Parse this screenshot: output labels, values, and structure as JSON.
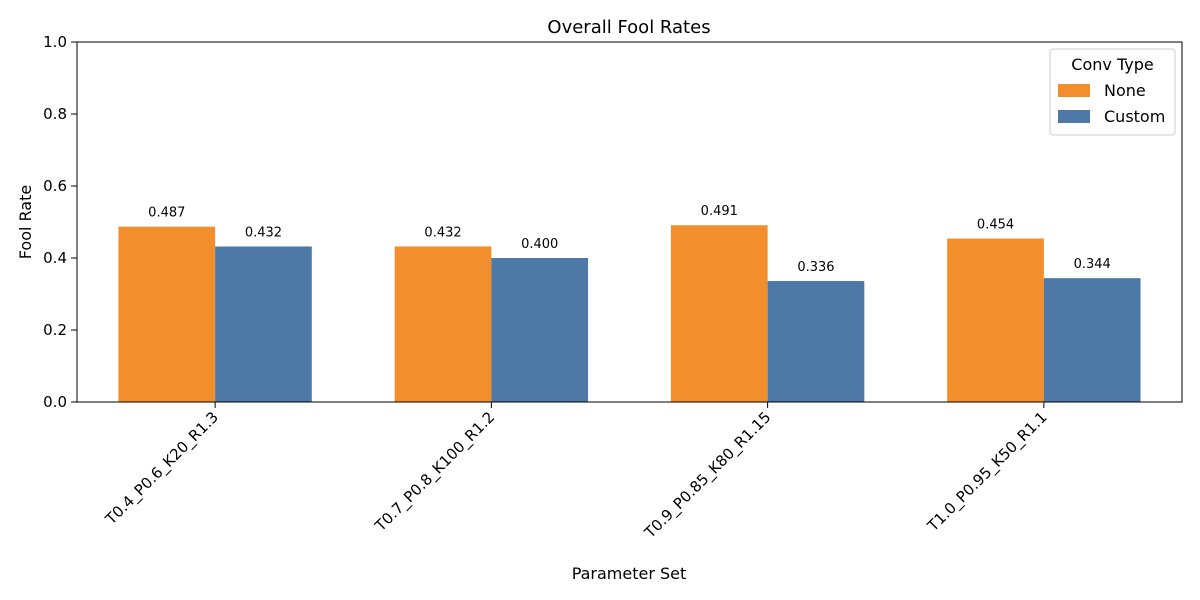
{
  "chart_data": {
    "type": "bar",
    "title": "Overall Fool Rates",
    "xlabel": "Parameter Set",
    "ylabel": "Fool Rate",
    "ylim": [
      0,
      1.0
    ],
    "yticks": [
      "0.0",
      "0.2",
      "0.4",
      "0.6",
      "0.8",
      "1.0"
    ],
    "categories": [
      "T0.4_P0.6_K20_R1.3",
      "T0.7_P0.8_K100_R1.2",
      "T0.9_P0.85_K80_R1.15",
      "T1.0_P0.95_K50_R1.1"
    ],
    "legend_title": "Conv Type",
    "legend_position": "top-right",
    "grid": false,
    "series": [
      {
        "name": "None",
        "color": "#f28e2b",
        "values": [
          0.487,
          0.432,
          0.491,
          0.454
        ],
        "labels": [
          "0.487",
          "0.432",
          "0.491",
          "0.454"
        ]
      },
      {
        "name": "Custom",
        "color": "#4e79a7",
        "values": [
          0.432,
          0.4,
          0.336,
          0.344
        ],
        "labels": [
          "0.432",
          "0.400",
          "0.336",
          "0.344"
        ]
      }
    ]
  }
}
